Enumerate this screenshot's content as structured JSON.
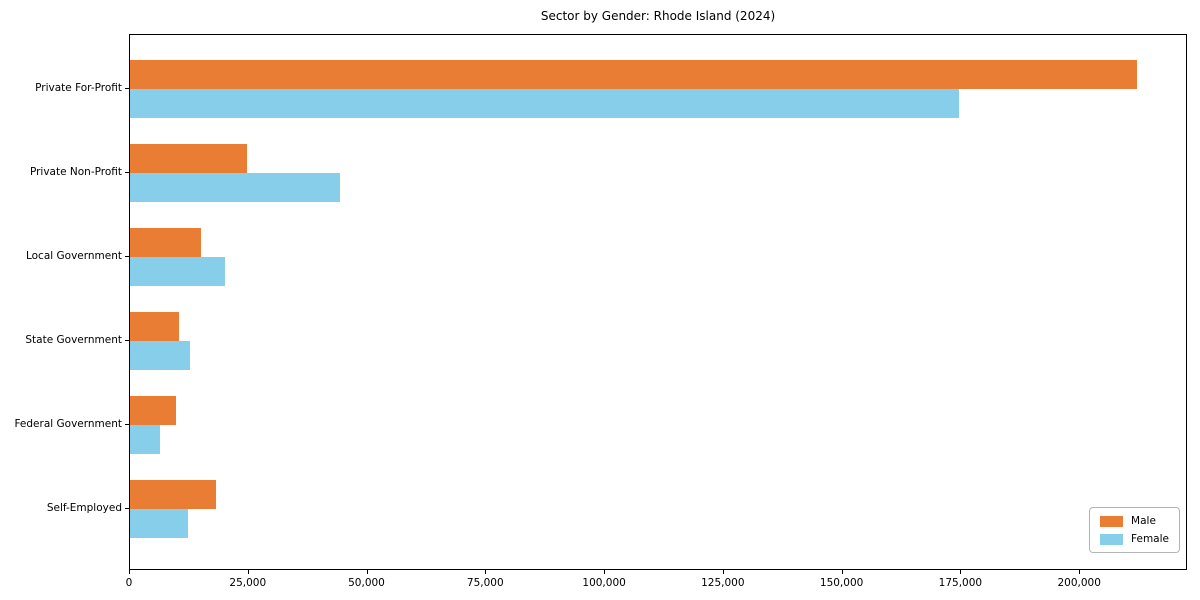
{
  "chart_data": {
    "type": "bar",
    "orientation": "horizontal",
    "title": "Sector by Gender: Rhode Island (2024)",
    "xlabel": "",
    "ylabel": "",
    "grid": false,
    "categories": [
      "Private For-Profit",
      "Private Non-Profit",
      "Local Government",
      "State Government",
      "Federal Government",
      "Self-Employed"
    ],
    "series": [
      {
        "name": "Male",
        "color": "#E87D33",
        "values": [
          212000,
          24700,
          15000,
          10400,
          9600,
          18100
        ]
      },
      {
        "name": "Female",
        "color": "#87CEEB",
        "values": [
          174500,
          44200,
          20000,
          12600,
          6200,
          12300
        ]
      }
    ],
    "xlim": [
      0,
      222700
    ],
    "x_ticks": [
      0,
      25000,
      50000,
      75000,
      100000,
      125000,
      150000,
      175000,
      200000
    ],
    "x_tick_labels": [
      "0",
      "25,000",
      "50,000",
      "75,000",
      "100,000",
      "125,000",
      "150,000",
      "175,000",
      "200,000"
    ],
    "legend": {
      "position": "lower right",
      "entries": [
        "Male",
        "Female"
      ]
    }
  }
}
